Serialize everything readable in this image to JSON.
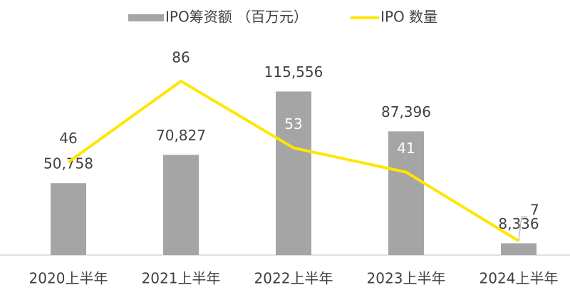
{
  "chart_data": {
    "type": "bar_line",
    "categories": [
      "2020上半年",
      "2021上半年",
      "2022上半年",
      "2023上半年",
      "2024上半年"
    ],
    "series": [
      {
        "name": "IPO筹资额 （百万元）",
        "type": "bar",
        "color": "#a5a5a5",
        "values": [
          50758,
          70827,
          115556,
          87396,
          8336
        ],
        "value_labels": [
          "50,758",
          "70,827",
          "115,556",
          "87,396",
          "8,336"
        ]
      },
      {
        "name": "IPO 数量",
        "type": "line",
        "axis": "y2",
        "color": "#ffe600",
        "values": [
          46,
          86,
          53,
          41,
          7
        ]
      }
    ],
    "ylim": [
      0,
      150000
    ],
    "y2lim": [
      0,
      105
    ],
    "legend": "top"
  }
}
